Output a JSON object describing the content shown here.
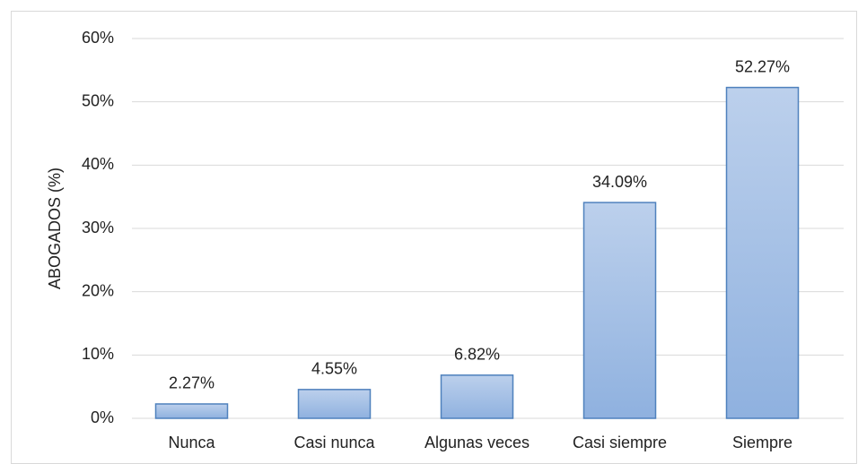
{
  "chart_data": {
    "type": "bar",
    "y_axis_label": "ABOGADOS (%)",
    "categories": [
      "Nunca",
      "Casi nunca",
      "Algunas veces",
      "Casi siempre",
      "Siempre"
    ],
    "values": [
      2.27,
      4.55,
      6.82,
      34.09,
      52.27
    ],
    "value_labels": [
      "2.27%",
      "4.55%",
      "6.82%",
      "34.09%",
      "52.27%"
    ],
    "color": "#4f81bd",
    "ylim": [
      0,
      60
    ],
    "yticks": [
      {
        "value": 0,
        "label": "0%"
      },
      {
        "value": 10,
        "label": "10%"
      },
      {
        "value": 20,
        "label": "20%"
      },
      {
        "value": 30,
        "label": "30%"
      },
      {
        "value": 40,
        "label": "40%"
      },
      {
        "value": 50,
        "label": "50%"
      },
      {
        "value": 60,
        "label": "60%"
      }
    ],
    "grid": true
  }
}
